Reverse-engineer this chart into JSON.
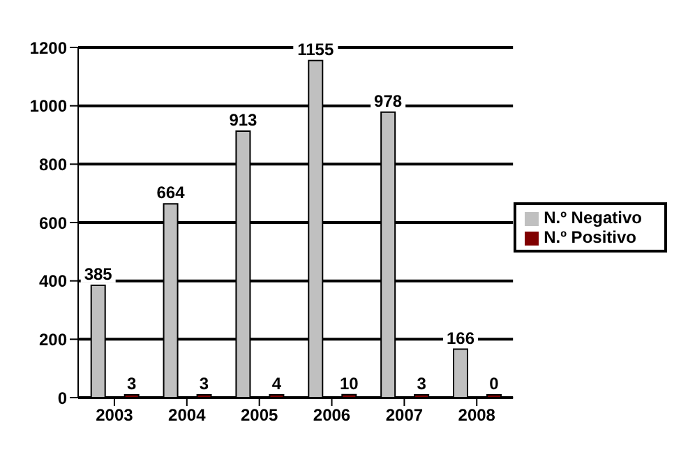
{
  "chart_data": {
    "type": "bar",
    "categories": [
      "2003",
      "2004",
      "2005",
      "2006",
      "2007",
      "2008"
    ],
    "series": [
      {
        "name": "N.º Negativo",
        "color": "#c0c0c0",
        "values": [
          385,
          664,
          913,
          1155,
          978,
          166
        ]
      },
      {
        "name": "N.º Positivo",
        "color": "#800000",
        "values": [
          3,
          3,
          4,
          10,
          3,
          0
        ]
      }
    ],
    "ylim": [
      0,
      1200
    ],
    "yticks": [
      0,
      200,
      400,
      600,
      800,
      1000,
      1200
    ],
    "grid": "y",
    "legend": "right",
    "data_labels": true
  }
}
